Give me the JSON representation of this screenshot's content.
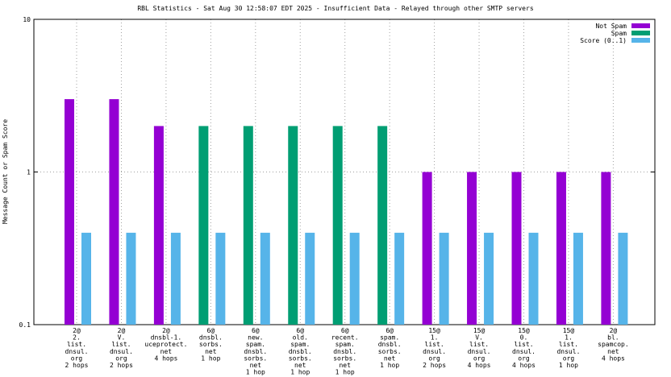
{
  "chart_data": {
    "type": "bar",
    "title": "RBL Statistics - Sat Aug 30 12:58:07 EDT 2025 - Insufficient Data - Relayed through other SMTP servers",
    "y_label": "Message Count or Spam Score",
    "log_y": true,
    "grid": true,
    "legend": "top-right",
    "ylim": [
      0.1,
      10
    ],
    "yticks": [
      0.1,
      1,
      10
    ],
    "categories": [
      "2@\n2.\nlist.\ndnsul.\norg\n2 hops",
      "2@\nV.\nlist.\ndnsul.\norg\n2 hops",
      "2@\ndnsbl-1.\nuceprotect.\nnet\n4 hops",
      "6@\ndnsbl.\nsorbs.\nnet\n1 hop",
      "6@\nnew.\nspam.\ndnsbl.\nsorbs.\nnet\n1 hop",
      "6@\nold.\nspam.\ndnsbl.\nsorbs.\nnet\n1 hop",
      "6@\nrecent.\nspam.\ndnsbl.\nsorbs.\nnet\n1 hop",
      "6@\nspam.\ndnsbl.\nsorbs.\nnet\n1 hop",
      "15@\n1.\nlist.\ndnsul.\norg\n2 hops",
      "15@\nV.\nlist.\ndnsul.\norg\n4 hops",
      "15@\n0.\nlist.\ndnsul.\norg\n4 hops",
      "15@\n1.\nlist.\ndnsul.\norg\n1 hop",
      "2@\nbl.\nspamcop.\nnet\n4 hops"
    ],
    "series": [
      {
        "name": "Not Spam",
        "color": "#9400d3",
        "values": [
          3,
          3,
          2,
          null,
          null,
          null,
          null,
          null,
          1,
          1,
          1,
          1,
          1
        ]
      },
      {
        "name": "Spam",
        "color": "#009e73",
        "values": [
          null,
          null,
          null,
          2,
          2,
          2,
          2,
          2,
          null,
          null,
          null,
          null,
          null
        ]
      },
      {
        "name": "Score (0..1)",
        "color": "#56b4e9",
        "values": [
          0.4,
          0.4,
          0.4,
          0.4,
          0.4,
          0.4,
          0.4,
          0.4,
          0.4,
          0.4,
          0.4,
          0.4,
          0.4
        ]
      }
    ]
  }
}
